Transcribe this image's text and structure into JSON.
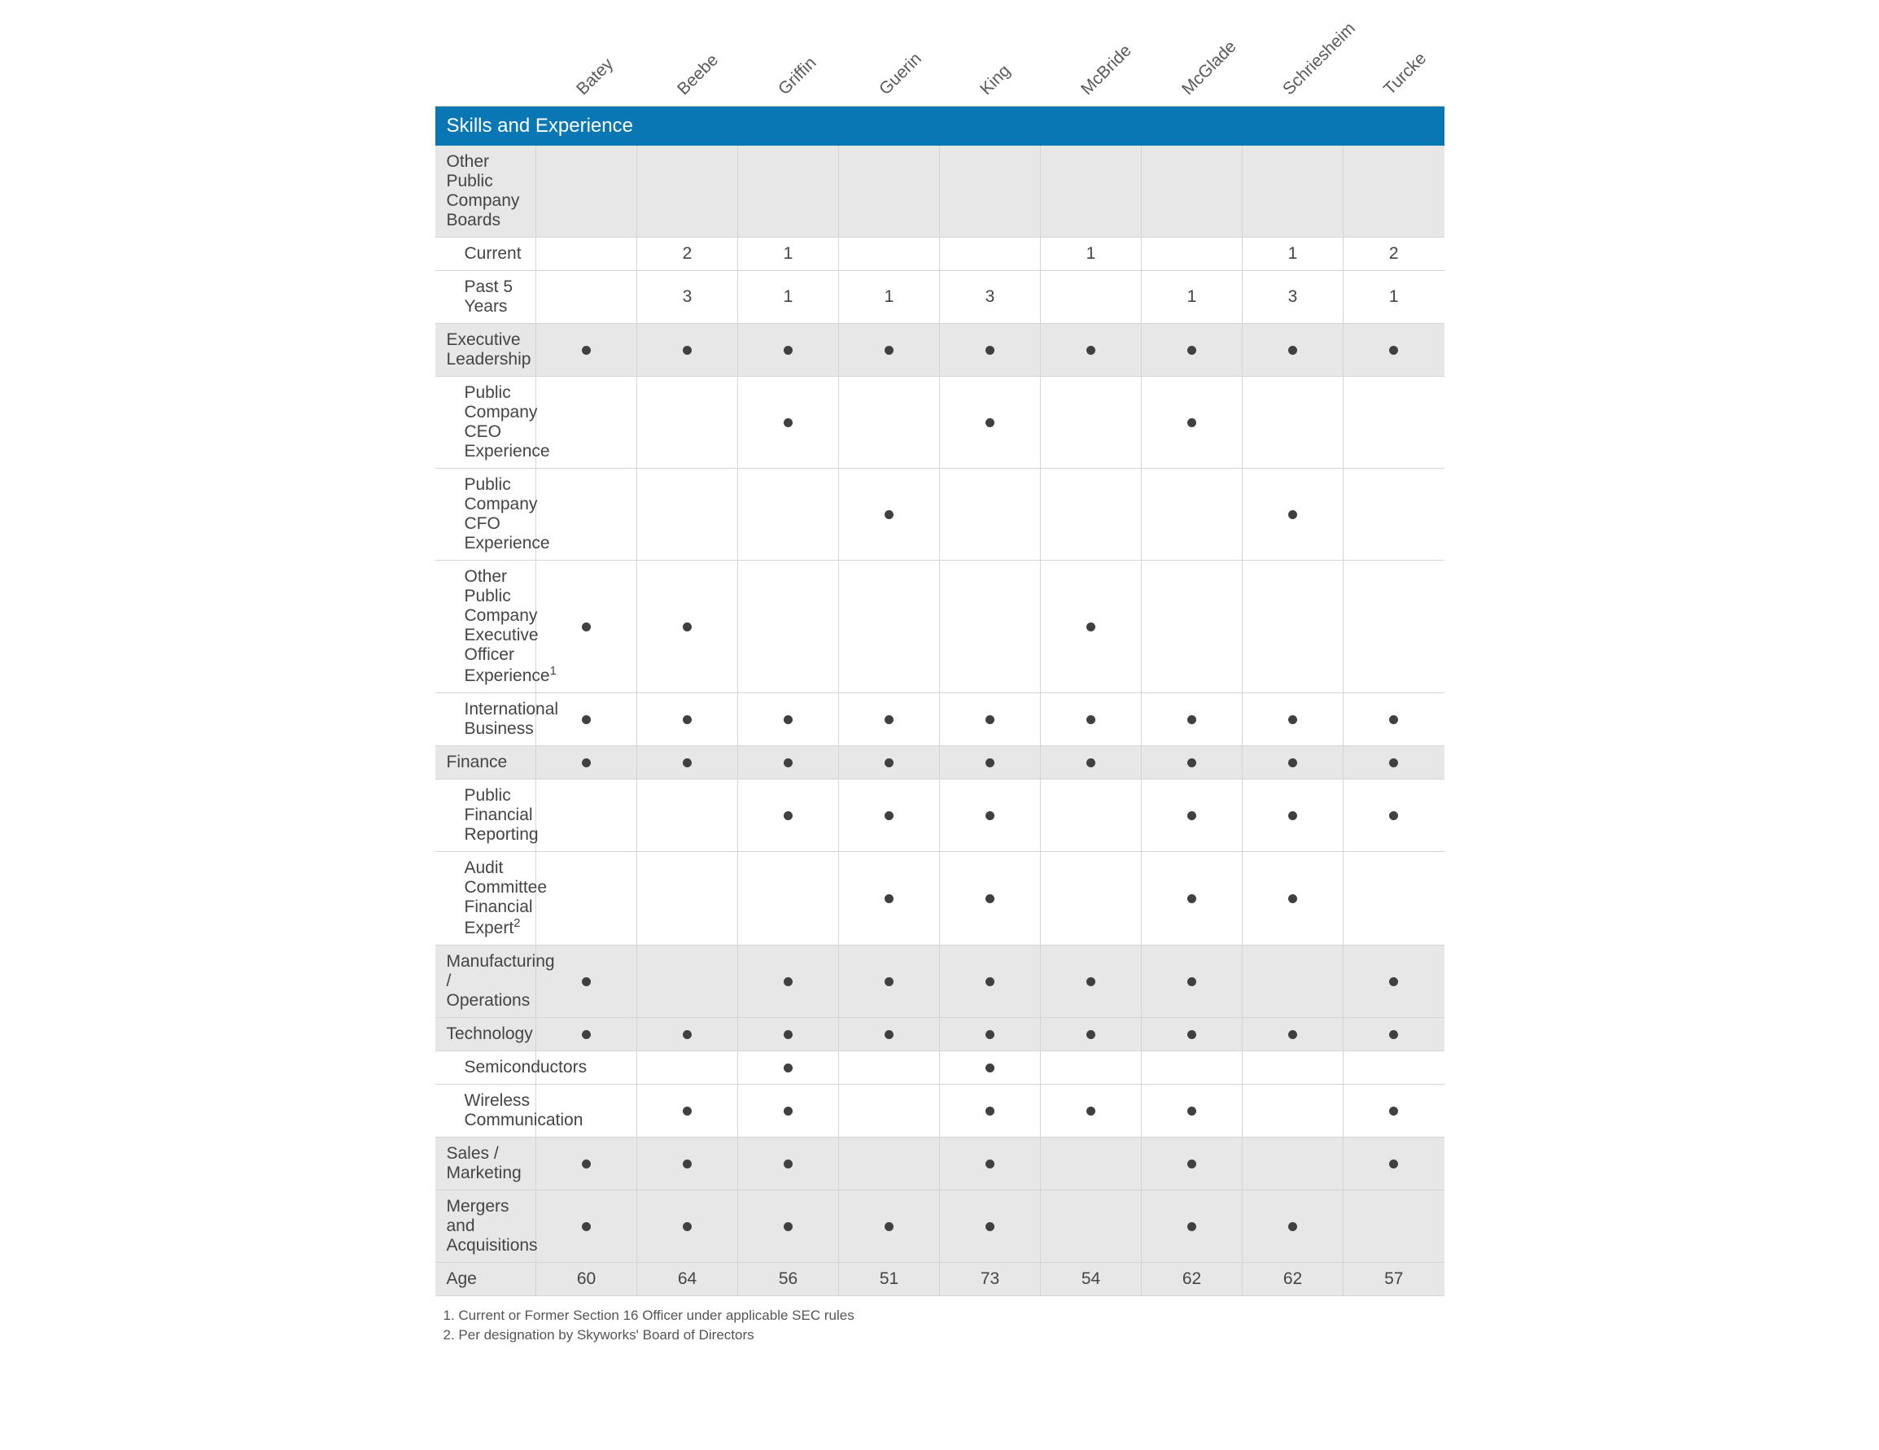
{
  "type": "table",
  "colors": {
    "header_band_bg": "#0a77b5",
    "header_band_text": "#ffffff",
    "shaded_row_bg": "#e7e7e8",
    "border": "#d5d5d5",
    "text": "#444444",
    "dot": "#404040",
    "background": "#ffffff"
  },
  "typography": {
    "body_fontsize": 21,
    "section_fontsize": 24,
    "header_fontsize": 21,
    "footnote_fontsize": 17
  },
  "section_title": "Skills and Experience",
  "columns": [
    "Batey",
    "Beebe",
    "Griffin",
    "Guerin",
    "King",
    "McBride",
    "McGlade",
    "Schriesheim",
    "Turcke"
  ],
  "rows": [
    {
      "label": "Other Public Company Boards",
      "indent": 0,
      "shaded": true,
      "cells": [
        "",
        "",
        "",
        "",
        "",
        "",
        "",
        "",
        ""
      ]
    },
    {
      "label": "Current",
      "indent": 1,
      "shaded": false,
      "cells": [
        "",
        "2",
        "1",
        "",
        "",
        "1",
        "",
        "1",
        "2"
      ]
    },
    {
      "label": "Past 5 Years",
      "indent": 1,
      "shaded": false,
      "cells": [
        "",
        "3",
        "1",
        "1",
        "3",
        "",
        "1",
        "3",
        "1"
      ]
    },
    {
      "label": "Executive Leadership",
      "indent": 0,
      "shaded": true,
      "cells": [
        "•",
        "•",
        "•",
        "•",
        "•",
        "•",
        "•",
        "•",
        "•"
      ]
    },
    {
      "label": "Public Company CEO Experience",
      "indent": 1,
      "shaded": false,
      "cells": [
        "",
        "",
        "•",
        "",
        "•",
        "",
        "•",
        "",
        ""
      ]
    },
    {
      "label": "Public Company CFO Experience",
      "indent": 1,
      "shaded": false,
      "cells": [
        "",
        "",
        "",
        "•",
        "",
        "",
        "",
        "•",
        ""
      ]
    },
    {
      "label": "Other Public Company Executive Officer Experience",
      "sup": "1",
      "indent": 1,
      "shaded": false,
      "cells": [
        "•",
        "•",
        "",
        "",
        "",
        "•",
        "",
        "",
        ""
      ]
    },
    {
      "label": "International Business",
      "indent": 1,
      "shaded": false,
      "cells": [
        "•",
        "•",
        "•",
        "•",
        "•",
        "•",
        "•",
        "•",
        "•"
      ]
    },
    {
      "label": "Finance",
      "indent": 0,
      "shaded": true,
      "cells": [
        "•",
        "•",
        "•",
        "•",
        "•",
        "•",
        "•",
        "•",
        "•"
      ]
    },
    {
      "label": "Public Financial Reporting",
      "indent": 1,
      "shaded": false,
      "cells": [
        "",
        "",
        "•",
        "•",
        "•",
        "",
        "•",
        "•",
        "•"
      ]
    },
    {
      "label": "Audit Committee Financial Expert",
      "sup": "2",
      "indent": 1,
      "shaded": false,
      "cells": [
        "",
        "",
        "",
        "•",
        "•",
        "",
        "•",
        "•",
        ""
      ]
    },
    {
      "label": "Manufacturing / Operations",
      "indent": 0,
      "shaded": true,
      "cells": [
        "•",
        "",
        "•",
        "•",
        "•",
        "•",
        "•",
        "",
        "•"
      ]
    },
    {
      "label": "Technology",
      "indent": 0,
      "shaded": true,
      "cells": [
        "•",
        "•",
        "•",
        "•",
        "•",
        "•",
        "•",
        "•",
        "•"
      ]
    },
    {
      "label": "Semiconductors",
      "indent": 1,
      "shaded": false,
      "cells": [
        "",
        "",
        "•",
        "",
        "•",
        "",
        "",
        "",
        ""
      ]
    },
    {
      "label": "Wireless Communication",
      "indent": 1,
      "shaded": false,
      "cells": [
        "",
        "•",
        "•",
        "",
        "•",
        "•",
        "•",
        "",
        "•"
      ]
    },
    {
      "label": "Sales / Marketing",
      "indent": 0,
      "shaded": true,
      "cells": [
        "•",
        "•",
        "•",
        "",
        "•",
        "",
        "•",
        "",
        "•"
      ]
    },
    {
      "label": "Mergers and Acquisitions",
      "indent": 0,
      "shaded": true,
      "cells": [
        "•",
        "•",
        "•",
        "•",
        "•",
        "",
        "•",
        "•",
        ""
      ]
    },
    {
      "label": "Age",
      "indent": 0,
      "shaded": true,
      "cells": [
        "60",
        "64",
        "56",
        "51",
        "73",
        "54",
        "62",
        "62",
        "57"
      ]
    }
  ],
  "footnotes": [
    "1. Current or Former Section 16 Officer under applicable SEC rules",
    "2. Per designation by Skyworks' Board of Directors"
  ]
}
